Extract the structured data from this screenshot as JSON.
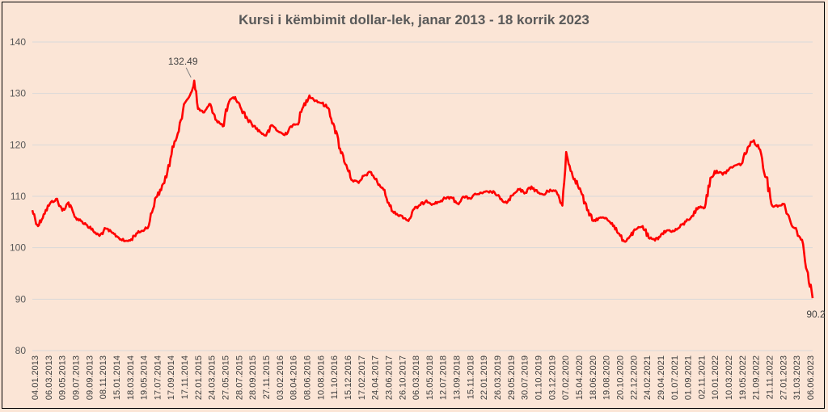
{
  "chart_data": {
    "type": "line",
    "title": "Kursi i këmbimit dollar-lek, janar 2013 - 18 korrik 2023",
    "xlabel": "",
    "ylabel": "",
    "ylim": [
      80,
      140
    ],
    "yticks": [
      "80",
      "90",
      "100",
      "110",
      "120",
      "130",
      "140"
    ],
    "grid": true,
    "legend": "none",
    "line_color": "#ff0000",
    "xtick_labels": [
      "04.01.2013",
      "06.03.2013",
      "09.05.2013",
      "09.07.2013",
      "09.09.2013",
      "08.11.2013",
      "15.01.2014",
      "18.03.2014",
      "19.05.2014",
      "17.07.2014",
      "17.09.2014",
      "17.11.2014",
      "22.01.2015",
      "24.03.2015",
      "27.05.2015",
      "28.07.2015",
      "28.09.2015",
      "27.11.2015",
      "03.02.2016",
      "08.04.2016",
      "08.06.2016",
      "10.08.2016",
      "11.10.2016",
      "15.12.2016",
      "17.02.2017",
      "24.04.2017",
      "23.06.2017",
      "26.10.2017",
      "06.03.2018",
      "15.05.2018",
      "12.07.2018",
      "13.09.2018",
      "15.11.2018",
      "22.01.2019",
      "26.03.2019",
      "29.05.2019",
      "30.07.2019",
      "01.10.2019",
      "03.12.2019",
      "07.02.2020",
      "15.04.2020",
      "18.06.2020",
      "19.08.2020",
      "20.10.2020",
      "22.12.2020",
      "24.02.2021",
      "29.04.2021",
      "01.07.2021",
      "01.09.2021",
      "02.11.2021",
      "10.01.2022",
      "10.03.2022",
      "19.05.2022",
      "21.09.2022",
      "21.11.2022",
      "27.01.2023",
      "31.03.2023",
      "06.06.2023"
    ],
    "x": [
      "2013-01-04",
      "2013-02-01",
      "2013-03-01",
      "2013-04-01",
      "2013-05-01",
      "2013-06-01",
      "2013-07-01",
      "2013-08-01",
      "2013-09-01",
      "2013-10-01",
      "2013-11-01",
      "2013-12-01",
      "2014-01-01",
      "2014-02-01",
      "2014-03-01",
      "2014-04-01",
      "2014-05-01",
      "2014-06-01",
      "2014-07-01",
      "2014-08-01",
      "2014-09-01",
      "2014-10-01",
      "2014-11-01",
      "2014-12-01",
      "2015-01-01",
      "2015-02-01",
      "2015-03-01",
      "2015-03-13",
      "2015-04-01",
      "2015-05-01",
      "2015-06-01",
      "2015-07-01",
      "2015-08-01",
      "2015-09-01",
      "2015-10-01",
      "2015-11-01",
      "2015-12-01",
      "2016-01-01",
      "2016-02-01",
      "2016-03-01",
      "2016-04-01",
      "2016-05-01",
      "2016-06-01",
      "2016-07-01",
      "2016-08-01",
      "2016-09-01",
      "2016-10-01",
      "2016-11-01",
      "2016-12-01",
      "2017-01-01",
      "2017-02-01",
      "2017-03-01",
      "2017-04-01",
      "2017-05-01",
      "2017-06-01",
      "2017-07-01",
      "2017-08-01",
      "2017-09-01",
      "2017-10-01",
      "2017-11-01",
      "2017-12-01",
      "2018-01-01",
      "2018-02-01",
      "2018-03-01",
      "2018-04-01",
      "2018-05-01",
      "2018-06-01",
      "2018-07-01",
      "2018-08-01",
      "2018-09-01",
      "2018-10-01",
      "2018-11-01",
      "2018-12-01",
      "2019-01-01",
      "2019-02-01",
      "2019-03-01",
      "2019-04-01",
      "2019-05-01",
      "2019-06-01",
      "2019-07-01",
      "2019-08-01",
      "2019-09-01",
      "2019-10-01",
      "2019-11-01",
      "2019-12-01",
      "2020-01-01",
      "2020-02-01",
      "2020-03-01",
      "2020-03-20",
      "2020-04-01",
      "2020-05-01",
      "2020-06-01",
      "2020-07-01",
      "2020-08-01",
      "2020-09-01",
      "2020-10-01",
      "2020-11-01",
      "2020-12-01",
      "2021-01-01",
      "2021-02-01",
      "2021-03-01",
      "2021-04-01",
      "2021-05-01",
      "2021-06-01",
      "2021-07-01",
      "2021-08-01",
      "2021-09-01",
      "2021-10-01",
      "2021-11-01",
      "2021-12-01",
      "2022-01-01",
      "2022-02-01",
      "2022-03-01",
      "2022-04-01",
      "2022-05-01",
      "2022-06-01",
      "2022-07-01",
      "2022-08-01",
      "2022-09-01",
      "2022-10-01",
      "2022-11-01",
      "2022-12-01",
      "2023-01-01",
      "2023-02-01",
      "2023-03-01",
      "2023-04-01",
      "2023-05-01",
      "2023-06-01",
      "2023-06-20",
      "2023-07-18"
    ],
    "series": [
      {
        "name": "",
        "values": [
          107.3,
          104.2,
          106.5,
          108.6,
          109.5,
          107.2,
          108.8,
          106.0,
          105.2,
          104.4,
          103.2,
          102.3,
          103.7,
          102.9,
          102.1,
          101.3,
          101.4,
          102.8,
          103.3,
          104.3,
          109.6,
          111.2,
          114.8,
          119.6,
          124.3,
          128.5,
          130.4,
          132.49,
          127.0,
          126.3,
          127.9,
          124.8,
          123.6,
          128.4,
          129.3,
          126.9,
          125.0,
          123.7,
          122.5,
          121.8,
          123.8,
          122.6,
          121.9,
          123.6,
          124.0,
          127.4,
          129.6,
          128.6,
          128.1,
          127.2,
          123.6,
          119.3,
          116.1,
          113.1,
          112.6,
          114.1,
          114.7,
          112.7,
          111.3,
          108.1,
          106.5,
          106.2,
          105.2,
          107.5,
          108.3,
          109.2,
          108.5,
          108.9,
          109.6,
          109.8,
          108.6,
          109.9,
          109.6,
          110.4,
          110.6,
          110.9,
          110.8,
          109.4,
          108.7,
          110.2,
          111.3,
          110.7,
          111.9,
          110.7,
          110.3,
          111.3,
          110.9,
          108.2,
          118.6,
          116.3,
          113.4,
          110.9,
          107.3,
          105.2,
          105.8,
          105.8,
          104.8,
          102.8,
          101.2,
          102.4,
          103.6,
          104.2,
          101.9,
          101.4,
          102.6,
          103.4,
          103.2,
          104.0,
          105.1,
          106.2,
          107.9,
          107.8,
          113.6,
          115.0,
          114.2,
          115.3,
          116.0,
          116.3,
          119.5,
          120.9,
          119.1,
          113.7,
          108.1,
          108.2,
          108.5,
          104.9,
          103.3,
          100.7,
          95.6,
          90.2
        ]
      }
    ],
    "annotations": [
      {
        "text": "132.49",
        "x": "2015-03-13",
        "y": 132.49
      },
      {
        "text": "90.2",
        "x": "2023-07-18",
        "y": 90.2
      }
    ]
  }
}
